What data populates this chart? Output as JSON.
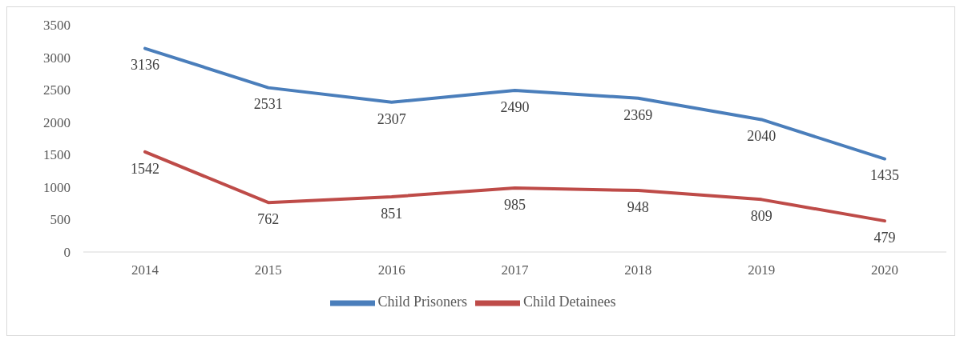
{
  "chart_data": {
    "type": "line",
    "categories": [
      "2014",
      "2015",
      "2016",
      "2017",
      "2018",
      "2019",
      "2020"
    ],
    "series": [
      {
        "name": "Child Prisoners",
        "color": "#4a7ebb",
        "values": [
          3136,
          2531,
          2307,
          2490,
          2369,
          2040,
          1435
        ]
      },
      {
        "name": "Child Detainees",
        "color": "#be4b48",
        "values": [
          1542,
          762,
          851,
          985,
          948,
          809,
          479
        ]
      }
    ],
    "ylim": [
      0,
      3500
    ],
    "yticks": [
      0,
      500,
      1000,
      1500,
      2000,
      2500,
      3000,
      3500
    ],
    "data_labels": true,
    "legend": "bottom",
    "marker": "none",
    "line_style": "solid",
    "grid": false
  }
}
